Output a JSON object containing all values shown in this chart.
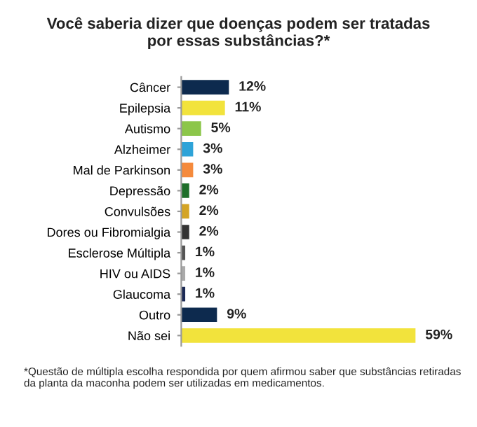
{
  "chart_data": {
    "type": "bar",
    "orientation": "horizontal",
    "title": "Você saberia dizer que doenças podem ser tratadas\npor essas substâncias?*",
    "categories": [
      "Câncer",
      "Epilepsia",
      "Autismo",
      "Alzheimer",
      "Mal de Parkinson",
      "Depressão",
      "Convulsões",
      "Dores ou Fibromialgia",
      "Esclerose Múltipla",
      "HIV ou AIDS",
      "Glaucoma",
      "Outro",
      "Não sei"
    ],
    "values": [
      12,
      11,
      5,
      3,
      3,
      2,
      2,
      2,
      1,
      1,
      1,
      9,
      59
    ],
    "colors": [
      "#0d2a4e",
      "#f2e33c",
      "#8cc64a",
      "#2ea3d8",
      "#f58a3c",
      "#1e6e2a",
      "#d4a424",
      "#333333",
      "#555555",
      "#aaaaaa",
      "#1c2a55",
      "#0d2a4e",
      "#f2e33c"
    ],
    "value_labels": [
      "12%",
      "11%",
      "5%",
      "3%",
      "3%",
      "2%",
      "2%",
      "2%",
      "1%",
      "1%",
      "1%",
      "9%",
      "59%"
    ],
    "annotations": [
      "*Questão de múltipla escolha respondida por quem afirmou saber que substâncias retiradas da planta da maconha podem ser utilizadas em medicamentos."
    ]
  }
}
